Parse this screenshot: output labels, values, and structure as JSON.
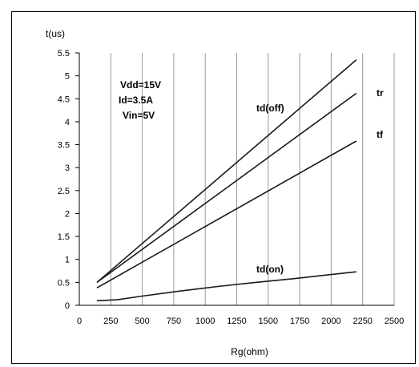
{
  "chart_data": {
    "type": "line",
    "title": "",
    "xlabel": "Rg(ohm)",
    "ylabel": "t(us)",
    "xlim": [
      0,
      2500
    ],
    "ylim": [
      0,
      5.5
    ],
    "x_ticks": [
      0,
      250,
      500,
      750,
      1000,
      1250,
      1500,
      1750,
      2000,
      2250,
      2500
    ],
    "x_tick_labels": [
      "0",
      "250",
      "500",
      "750",
      "1000",
      "1250",
      "1500",
      "1750",
      "2000",
      "2250",
      "2500"
    ],
    "y_ticks": [
      0,
      0.5,
      1,
      1.5,
      2,
      2.5,
      3,
      3.5,
      4,
      4.5,
      5,
      5.5
    ],
    "y_tick_labels": [
      "0",
      "0.5",
      "1",
      "1.5",
      "2",
      "2.5",
      "3",
      "3.5",
      "4",
      "4.5",
      "5",
      "5.5"
    ],
    "grid": "vertical",
    "conditions": [
      "Vdd=15V",
      "Id=3.5A",
      "Vin=5V"
    ],
    "series": [
      {
        "name": "td(off)",
        "x": [
          140,
          2200
        ],
        "y": [
          0.5,
          5.35
        ]
      },
      {
        "name": "tr",
        "x": [
          140,
          2200
        ],
        "y": [
          0.5,
          4.62
        ]
      },
      {
        "name": "tf",
        "x": [
          140,
          2200
        ],
        "y": [
          0.38,
          3.58
        ]
      },
      {
        "name": "td(on)",
        "x": [
          140,
          300,
          500,
          800,
          1100,
          1400,
          1700,
          2000,
          2200
        ],
        "y": [
          0.1,
          0.12,
          0.2,
          0.31,
          0.41,
          0.5,
          0.58,
          0.67,
          0.73
        ]
      }
    ]
  }
}
